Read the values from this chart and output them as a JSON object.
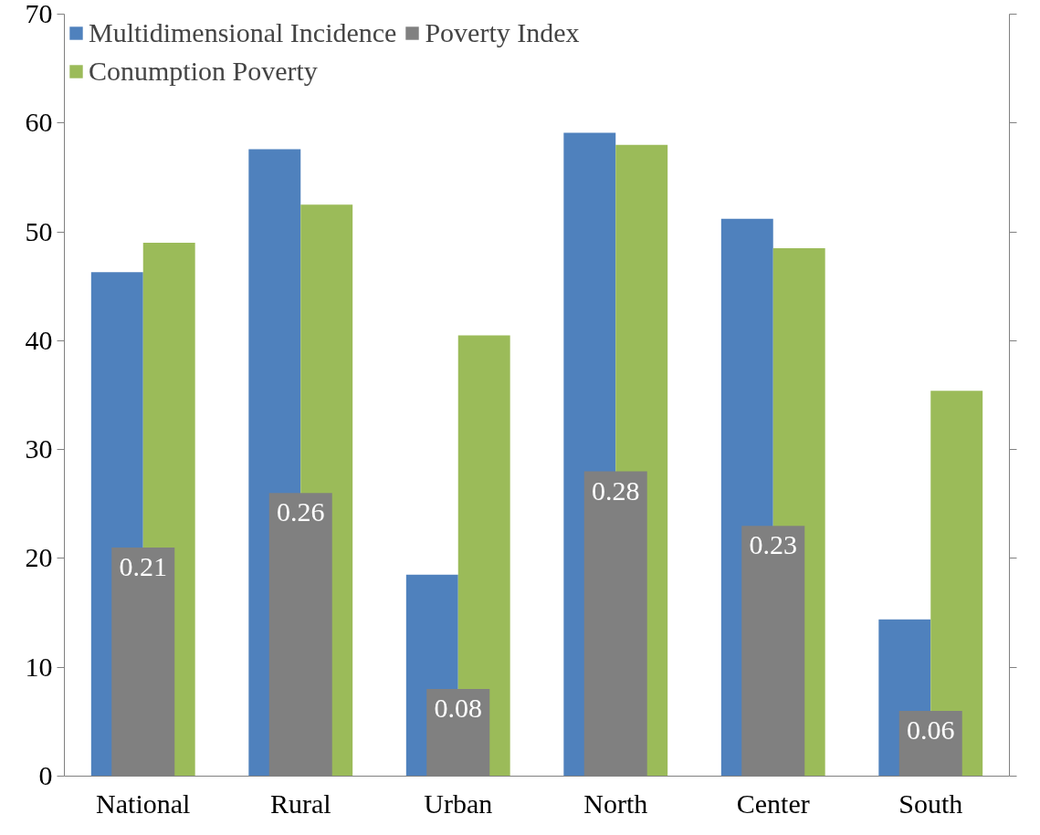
{
  "chart_data": {
    "type": "bar",
    "categories": [
      "National",
      "Rural",
      "Urban",
      "North",
      "Center",
      "South"
    ],
    "series": [
      {
        "name": "Multidimensional Incidence",
        "color": "#4f81bd",
        "values": [
          46.3,
          57.6,
          18.5,
          59.1,
          51.2,
          14.4
        ]
      },
      {
        "name": "Conumption Poverty",
        "color": "#9bbb59",
        "values": [
          49.0,
          52.5,
          40.5,
          58.0,
          48.5,
          35.4
        ]
      },
      {
        "name": "Poverty Index",
        "color": "#808080",
        "axis": "y2",
        "values": [
          0.21,
          0.26,
          0.08,
          0.28,
          0.23,
          0.06
        ],
        "value_labels": [
          "0.21",
          "0.26",
          "0.08",
          "0.28",
          "0.23",
          "0.06"
        ]
      }
    ],
    "ylim": [
      0,
      70
    ],
    "yticks": [
      0,
      10,
      20,
      30,
      40,
      50,
      60,
      70
    ],
    "y2lim": [
      0,
      0.7
    ],
    "y2ticks": [
      {
        "value": 0,
        "label": null
      },
      {
        "value": 0.1,
        "label": null
      },
      {
        "value": 0.2,
        "label": null
      },
      {
        "value": 0.3,
        "label": null
      },
      {
        "value": 0.4,
        "label": null
      },
      {
        "value": 0.5,
        "label": null
      },
      {
        "value": 0.6,
        "label": null
      },
      {
        "value": 0.7,
        "label": null
      }
    ],
    "grid": false,
    "legend": "top left"
  }
}
